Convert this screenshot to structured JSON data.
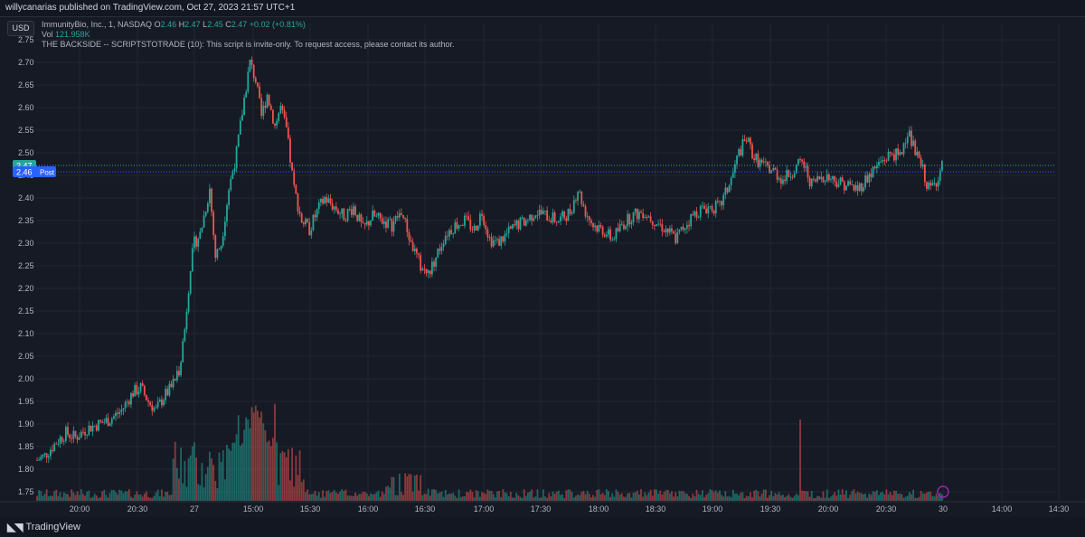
{
  "header": {
    "published": "willycanarias published on TradingView.com, Oct 27, 2023 21:57 UTC+1"
  },
  "currency_label": "USD",
  "legend": {
    "symbol": "ImmunityBio, Inc., 1, NASDAQ",
    "o_label": "O",
    "o": "2.46",
    "h_label": "H",
    "h": "2.47",
    "l_label": "L",
    "l": "2.45",
    "c_label": "C",
    "c": "2.47",
    "change": "+0.02 (+0.81%)",
    "vol_label": "Vol",
    "vol": "121.958K",
    "script": "THE BACKSIDE -- SCRIPTSTOTRADE (10): This script is invite-only. To request access, please contact its author."
  },
  "footer": {
    "brand": "TradingView",
    "brand_icon": "tradingview-logo-icon"
  },
  "colors": {
    "up": "#26a69a",
    "down": "#ef5350",
    "bg": "#161a25",
    "grid": "#232632",
    "price_badge": "#26a69a",
    "post_badge": "#2962ff"
  },
  "chart_data": {
    "type": "candlestick",
    "y_axis": {
      "ticks": [
        "2.75",
        "2.70",
        "2.65",
        "2.60",
        "2.55",
        "2.50",
        "2.45",
        "2.40",
        "2.35",
        "2.30",
        "2.25",
        "2.20",
        "2.15",
        "2.10",
        "2.05",
        "2.00",
        "1.95",
        "1.90",
        "1.85",
        "1.80",
        "1.75"
      ],
      "ylim": [
        1.74,
        2.77
      ]
    },
    "x_axis": {
      "ticks": [
        "20:00",
        "20:30",
        "27",
        "15:00",
        "15:30",
        "16:00",
        "16:30",
        "17:00",
        "17:30",
        "18:00",
        "18:30",
        "19:00",
        "19:30",
        "20:00",
        "20:30",
        "30",
        "14:00",
        "14:30"
      ]
    },
    "price_labels": {
      "last": "2.47",
      "post": "2.46",
      "post_tag": "Post"
    },
    "anchors": [
      [
        0,
        1.82
      ],
      [
        4,
        1.83
      ],
      [
        10,
        1.86
      ],
      [
        15,
        1.88
      ],
      [
        20,
        1.87
      ],
      [
        26,
        1.89
      ],
      [
        32,
        1.9
      ],
      [
        38,
        1.91
      ],
      [
        44,
        1.93
      ],
      [
        50,
        1.97
      ],
      [
        54,
        1.98
      ],
      [
        58,
        1.95
      ],
      [
        62,
        1.93
      ],
      [
        66,
        1.96
      ],
      [
        70,
        1.98
      ],
      [
        74,
        2.02
      ],
      [
        77,
        2.11
      ],
      [
        80,
        2.25
      ],
      [
        82,
        2.3
      ],
      [
        85,
        2.32
      ],
      [
        88,
        2.38
      ],
      [
        90,
        2.42
      ],
      [
        93,
        2.27
      ],
      [
        96,
        2.3
      ],
      [
        100,
        2.42
      ],
      [
        104,
        2.5
      ],
      [
        108,
        2.62
      ],
      [
        111,
        2.7
      ],
      [
        114,
        2.66
      ],
      [
        117,
        2.58
      ],
      [
        120,
        2.63
      ],
      [
        124,
        2.56
      ],
      [
        127,
        2.6
      ],
      [
        130,
        2.55
      ],
      [
        134,
        2.42
      ],
      [
        138,
        2.35
      ],
      [
        142,
        2.33
      ],
      [
        146,
        2.37
      ],
      [
        150,
        2.4
      ],
      [
        155,
        2.38
      ],
      [
        160,
        2.36
      ],
      [
        165,
        2.38
      ],
      [
        170,
        2.33
      ],
      [
        175,
        2.36
      ],
      [
        180,
        2.35
      ],
      [
        185,
        2.34
      ],
      [
        190,
        2.37
      ],
      [
        195,
        2.3
      ],
      [
        200,
        2.25
      ],
      [
        204,
        2.23
      ],
      [
        208,
        2.27
      ],
      [
        213,
        2.32
      ],
      [
        218,
        2.34
      ],
      [
        223,
        2.35
      ],
      [
        228,
        2.33
      ],
      [
        232,
        2.37
      ],
      [
        236,
        2.31
      ],
      [
        240,
        2.3
      ],
      [
        245,
        2.32
      ],
      [
        250,
        2.34
      ],
      [
        255,
        2.35
      ],
      [
        260,
        2.37
      ],
      [
        266,
        2.36
      ],
      [
        272,
        2.35
      ],
      [
        278,
        2.37
      ],
      [
        282,
        2.42
      ],
      [
        286,
        2.37
      ],
      [
        290,
        2.34
      ],
      [
        295,
        2.33
      ],
      [
        300,
        2.31
      ],
      [
        305,
        2.34
      ],
      [
        310,
        2.36
      ],
      [
        316,
        2.37
      ],
      [
        322,
        2.35
      ],
      [
        328,
        2.33
      ],
      [
        333,
        2.31
      ],
      [
        338,
        2.34
      ],
      [
        344,
        2.37
      ],
      [
        350,
        2.38
      ],
      [
        356,
        2.38
      ],
      [
        362,
        2.44
      ],
      [
        366,
        2.5
      ],
      [
        370,
        2.53
      ],
      [
        374,
        2.49
      ],
      [
        379,
        2.47
      ],
      [
        384,
        2.46
      ],
      [
        389,
        2.44
      ],
      [
        394,
        2.46
      ],
      [
        399,
        2.48
      ],
      [
        404,
        2.43
      ],
      [
        410,
        2.45
      ],
      [
        416,
        2.44
      ],
      [
        422,
        2.43
      ],
      [
        428,
        2.42
      ],
      [
        434,
        2.45
      ],
      [
        440,
        2.48
      ],
      [
        446,
        2.5
      ],
      [
        450,
        2.49
      ],
      [
        454,
        2.55
      ],
      [
        458,
        2.5
      ],
      [
        462,
        2.46
      ],
      [
        465,
        2.42
      ],
      [
        468,
        2.43
      ],
      [
        472,
        2.47
      ]
    ],
    "n_candles": 473,
    "series": [
      {
        "values_source": "anchors"
      },
      {
        "name": "Vol"
      }
    ]
  }
}
